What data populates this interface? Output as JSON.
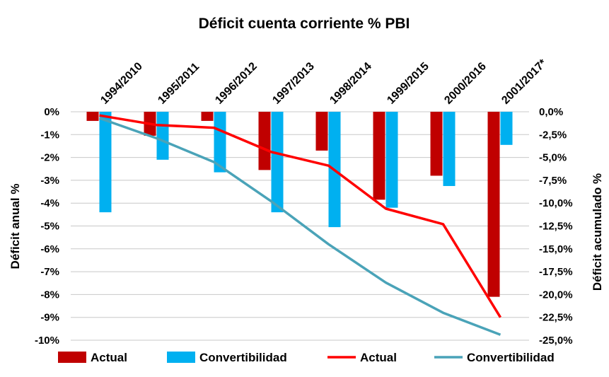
{
  "chart_data": {
    "type": "bar",
    "title": "Déficit cuenta corriente % PBI",
    "categories": [
      "1994/2010",
      "1995/2011",
      "1996/2012",
      "1997/2013",
      "1998/2014",
      "1999/2015",
      "2000/2016",
      "2001/2017*"
    ],
    "left_axis": {
      "label": "Déficit anual %",
      "ylim": [
        -10,
        0
      ],
      "ticks": [
        0,
        -1,
        -2,
        -3,
        -4,
        -5,
        -6,
        -7,
        -8,
        -9,
        -10
      ],
      "tick_labels": [
        "0%",
        "-1%",
        "-2%",
        "-3%",
        "-4%",
        "-5%",
        "-6%",
        "-7%",
        "-8%",
        "-9%",
        "-10%"
      ]
    },
    "right_axis": {
      "label": "Déficit acumulado %",
      "ylim": [
        -25,
        0
      ],
      "ticks": [
        0,
        -2.5,
        -5,
        -7.5,
        -10,
        -12.5,
        -15,
        -17.5,
        -20,
        -22.5,
        -25
      ],
      "tick_labels": [
        "0,0%",
        "-2,5%",
        "-5,0%",
        "-7,5%",
        "-10,0%",
        "-12,5%",
        "-15,0%",
        "-17,5%",
        "-20,0%",
        "-22,5%",
        "-25,0%"
      ]
    },
    "grid": true,
    "legend_position": "bottom",
    "series": [
      {
        "name": "Actual",
        "type": "bar",
        "axis": "left",
        "color": "#c00000",
        "values": [
          -0.4,
          -1.05,
          -0.4,
          -2.55,
          -1.7,
          -3.85,
          -2.8,
          -8.1
        ]
      },
      {
        "name": "Convertibilidad",
        "type": "bar",
        "axis": "left",
        "color": "#00b0f0",
        "values": [
          -4.4,
          -2.1,
          -2.65,
          -4.4,
          -5.05,
          -4.2,
          -3.25,
          -1.45
        ]
      },
      {
        "name": "Actual",
        "type": "line",
        "axis": "right",
        "color": "#ff0000",
        "values": [
          -0.4,
          -1.45,
          -1.75,
          -4.4,
          -5.9,
          -10.6,
          -12.3,
          -22.5
        ]
      },
      {
        "name": "Convertibilidad",
        "type": "line",
        "axis": "right",
        "color": "#4aa3b8",
        "values": [
          -0.7,
          -2.9,
          -5.5,
          -9.8,
          -14.5,
          -18.7,
          -22.0,
          -24.4
        ]
      }
    ]
  }
}
